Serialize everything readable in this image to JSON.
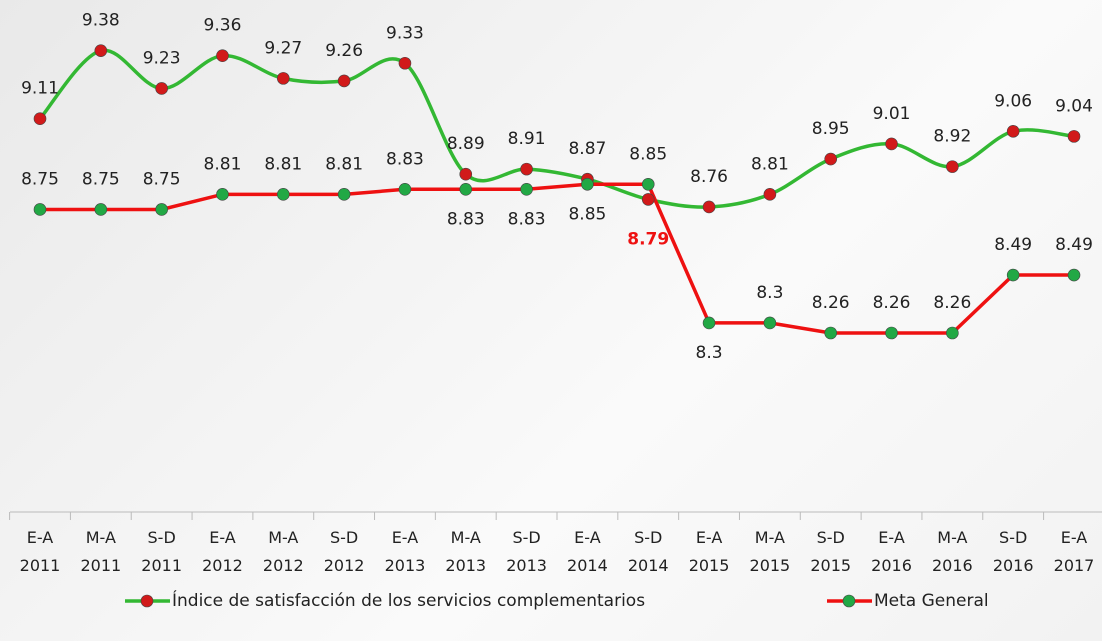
{
  "chart_data": {
    "type": "line",
    "categories": [
      "E-A 2011",
      "M-A 2011",
      "S-D 2011",
      "E-A 2012",
      "M-A 2012",
      "S-D 2012",
      "E-A 2013",
      "M-A 2013",
      "S-D 2013",
      "E-A 2014",
      "S-D 2014",
      "E-A 2015",
      "M-A 2015",
      "S-D 2015",
      "E-A 2016",
      "M-A 2016",
      "S-D 2016",
      "E-A 2017"
    ],
    "series": [
      {
        "name": "Índice de satisfacción de los servicios complementarios",
        "color": "#33b833",
        "marker_color": "#d11a1a",
        "smooth": true,
        "values": [
          9.11,
          9.38,
          9.23,
          9.36,
          9.27,
          9.26,
          9.33,
          8.89,
          8.91,
          8.87,
          8.79,
          8.76,
          8.81,
          8.95,
          9.01,
          8.92,
          9.06,
          9.04
        ]
      },
      {
        "name": "Meta General",
        "color": "#ee1111",
        "marker_color": "#22a845",
        "smooth": false,
        "values": [
          8.75,
          8.75,
          8.75,
          8.81,
          8.81,
          8.81,
          8.83,
          8.83,
          8.83,
          8.85,
          8.85,
          8.3,
          8.3,
          8.26,
          8.26,
          8.26,
          8.49,
          8.49
        ]
      }
    ],
    "ylim": [
      7.55,
      9.45
    ]
  }
}
